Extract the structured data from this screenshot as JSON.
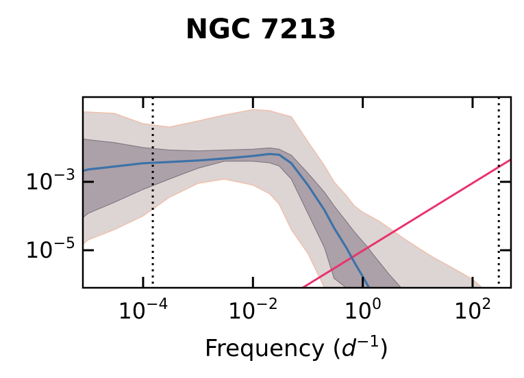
{
  "chart_data": {
    "type": "line",
    "title": "NGC 7213",
    "xlabel": "Frequency (d⁻¹)",
    "xlabel_parts": {
      "text": "Frequency (",
      "var": "d",
      "exp": "−1",
      "close": ")"
    },
    "ylabel": "",
    "x_scale": "log",
    "y_scale": "log",
    "xlim": [
      8e-06,
      500
    ],
    "ylim": [
      8e-07,
      0.3
    ],
    "x_ticks": [
      {
        "label": "10",
        "exp": "−4",
        "value": 0.0001
      },
      {
        "label": "10",
        "exp": "−2",
        "value": 0.01
      },
      {
        "label": "10",
        "exp": "0",
        "value": 1
      },
      {
        "label": "10",
        "exp": "2",
        "value": 100
      }
    ],
    "y_ticks": [
      {
        "label": "10",
        "exp": "−3",
        "value": 0.001
      },
      {
        "label": "10",
        "exp": "−5",
        "value": 1e-05
      }
    ],
    "vlines": [
      0.00015,
      300
    ],
    "grid": false,
    "colors": {
      "median": "#3d72a8",
      "inner_band": "#8c7f8a",
      "outer_band": "#c7b8b8",
      "band_edge": "#f2b9a0",
      "noise_line": "#e8336e",
      "vline": "#000000"
    },
    "series": [
      {
        "kind": "median",
        "x": [
          8e-06,
          1e-05,
          3e-05,
          0.0001,
          0.0003,
          0.001,
          0.003,
          0.01,
          0.02,
          0.03,
          0.05,
          0.1,
          0.2,
          0.3,
          0.5,
          0.7,
          1,
          1.3
        ],
        "y": [
          0.0021,
          0.0023,
          0.0028,
          0.0035,
          0.0038,
          0.0042,
          0.0048,
          0.0057,
          0.0065,
          0.0062,
          0.0035,
          0.0008,
          0.00015,
          4.5e-05,
          1.2e-05,
          4.5e-06,
          1.7e-06,
          8e-07
        ]
      },
      {
        "kind": "band_68",
        "x": [
          8e-06,
          1e-05,
          3e-05,
          0.0001,
          0.0003,
          0.001,
          0.003,
          0.01,
          0.02,
          0.03,
          0.05,
          0.1,
          0.2,
          0.3,
          0.5,
          0.7,
          1,
          1.2,
          1.5,
          2,
          3,
          5
        ],
        "upper": [
          0.018,
          0.017,
          0.014,
          0.01,
          0.0085,
          0.008,
          0.0085,
          0.009,
          0.0098,
          0.009,
          0.006,
          0.0018,
          0.0005,
          0.0002,
          7e-05,
          3.5e-05,
          1.8e-05,
          1.3e-05,
          8e-06,
          4.5e-06,
          2e-06,
          8e-07
        ],
        "lower": [
          9e-05,
          0.00012,
          0.00025,
          0.0006,
          0.0012,
          0.0025,
          0.004,
          0.004,
          0.0036,
          0.0029,
          0.0012,
          0.00012,
          1.2e-05,
          1.5e-06,
          8e-07,
          8e-07,
          8e-07,
          8e-07,
          8e-07,
          8e-07,
          8e-07,
          8e-07
        ]
      },
      {
        "kind": "band_95",
        "x": [
          8e-06,
          1e-05,
          3e-05,
          0.0001,
          0.0003,
          0.001,
          0.003,
          0.01,
          0.02,
          0.03,
          0.05,
          0.1,
          0.2,
          0.3,
          0.5,
          0.7,
          1,
          2,
          3,
          5,
          10,
          20,
          50,
          100,
          150
        ],
        "upper": [
          0.11,
          0.11,
          0.1,
          0.05,
          0.04,
          0.06,
          0.09,
          0.13,
          0.12,
          0.1,
          0.08,
          0.015,
          0.003,
          0.001,
          0.0004,
          0.0002,
          0.00013,
          7e-05,
          4.5e-05,
          2.5e-05,
          1.2e-05,
          6e-06,
          2.7e-06,
          1.4e-06,
          8e-07
        ],
        "lower": [
          1.5e-05,
          2e-05,
          4e-05,
          0.0001,
          0.00035,
          0.0009,
          0.0012,
          0.0008,
          0.00045,
          0.00022,
          4e-05,
          8e-06,
          8e-07,
          8e-07,
          8e-07,
          8e-07,
          8e-07,
          8e-07,
          8e-07,
          8e-07,
          8e-07,
          8e-07,
          8e-07,
          8e-07,
          8e-07
        ]
      },
      {
        "kind": "noise_line",
        "x": [
          0.08,
          500
        ],
        "y": [
          8e-07,
          0.0045
        ]
      }
    ]
  }
}
